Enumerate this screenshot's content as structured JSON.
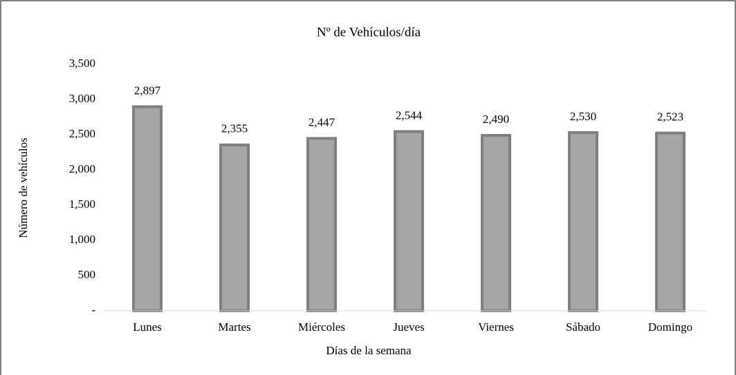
{
  "chart_data": {
    "type": "bar",
    "title": "Nº de Vehículos/día",
    "x_label": "Días de la semana",
    "y_label": "Número de vehículos",
    "categories": [
      "Lunes",
      "Martes",
      "Miércoles",
      "Jueves",
      "Viernes",
      "Sábado",
      "Domingo"
    ],
    "values": [
      2897,
      2355,
      2447,
      2544,
      2490,
      2530,
      2523
    ],
    "value_labels": [
      "2,897",
      "2,355",
      "2,447",
      "2,544",
      "2,490",
      "2,530",
      "2,523"
    ],
    "color": "#a6a6a6",
    "edge_color": "#7f7f7f",
    "ylim": [
      0,
      3500
    ],
    "yticks": [
      {
        "value": 0,
        "label": "-"
      },
      500,
      {
        "value": 1000,
        "label": "1,000"
      },
      {
        "value": 1500,
        "label": "1,500"
      },
      {
        "value": 2000,
        "label": "2,000"
      },
      {
        "value": 2500,
        "label": "2,500"
      },
      {
        "value": 3000,
        "label": "3,000"
      },
      {
        "value": 3500,
        "label": "3,500"
      }
    ],
    "grid": false
  }
}
